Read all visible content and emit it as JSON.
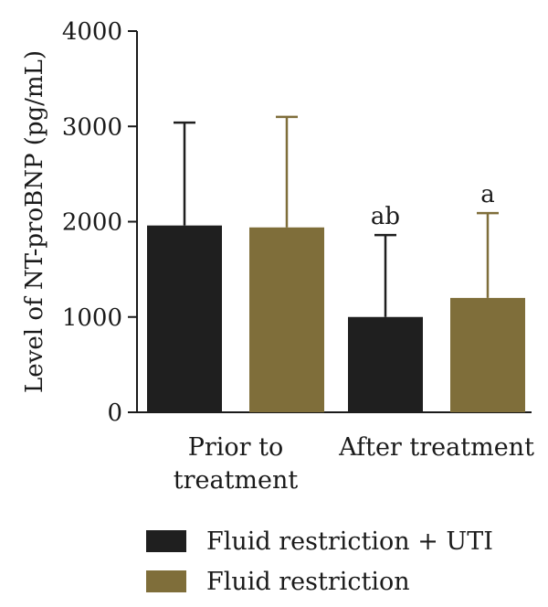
{
  "chart_data": {
    "type": "bar",
    "categories": [
      "Prior to\ntreatment",
      "After treatment"
    ],
    "series": [
      {
        "name": "Fluid restriction + UTI",
        "values": [
          1960,
          1000
        ],
        "error": [
          1080,
          860
        ],
        "color": "#1f1f1f"
      },
      {
        "name": "Fluid restriction",
        "values": [
          1940,
          1200
        ],
        "error": [
          1160,
          890
        ],
        "color": "#7f6e3a"
      }
    ],
    "annotations": [
      {
        "category": 1,
        "series": 0,
        "text": "ab"
      },
      {
        "category": 1,
        "series": 1,
        "text": "a"
      }
    ],
    "ylabel": "Level of NT-proBNP (pg/mL)",
    "xlabel": "",
    "ylim": [
      0,
      4000
    ],
    "yticks": [
      0,
      1000,
      2000,
      3000,
      4000
    ],
    "grid": false,
    "legend_position": "bottom"
  }
}
